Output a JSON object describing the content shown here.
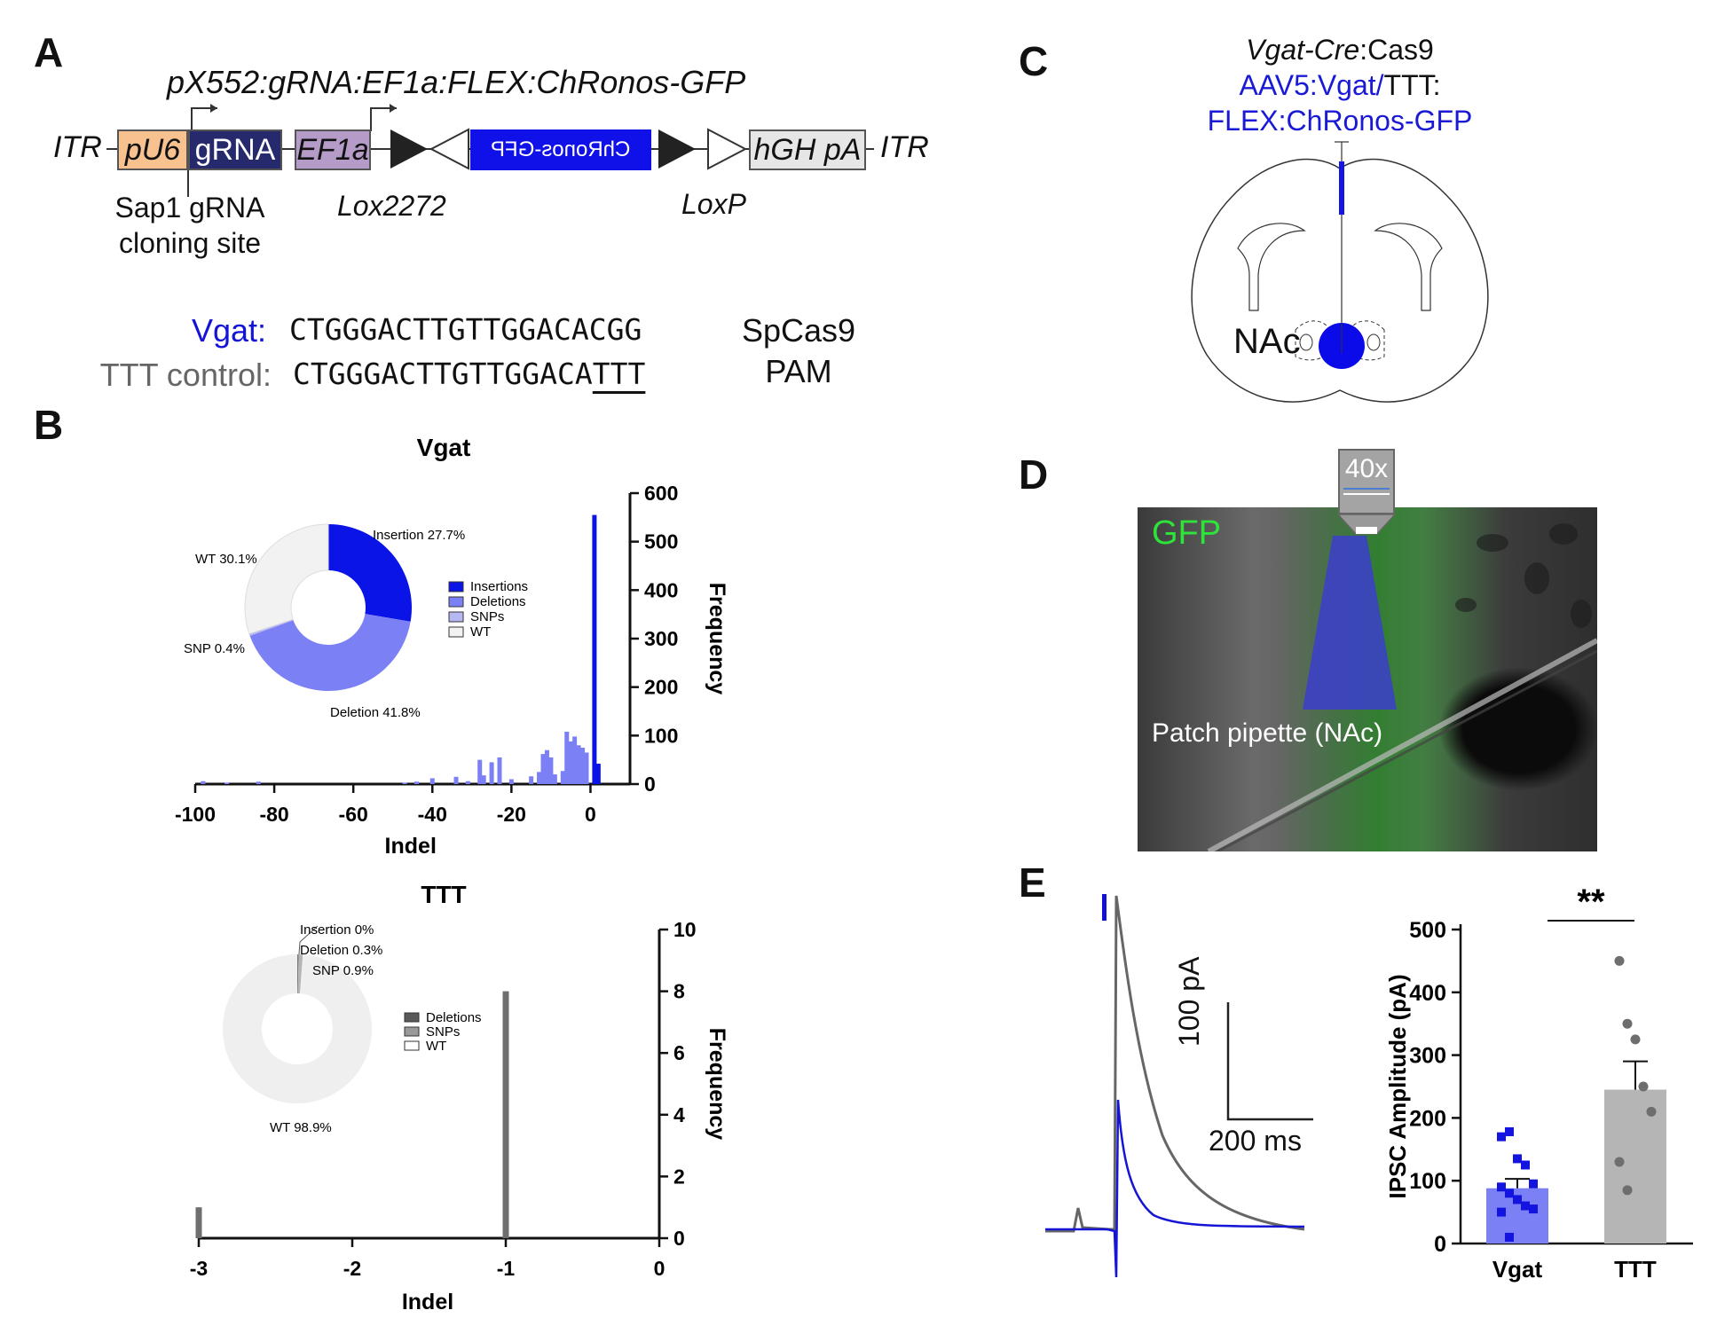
{
  "panels": {
    "A": "A",
    "B": "B",
    "C": "C",
    "D": "D",
    "E": "E"
  },
  "construct": {
    "title": "pX552:gRNA:EF1a:FLEX:ChRonos-GFP",
    "itr_left": "ITR",
    "itr_right": "ITR",
    "pu6": "pU6",
    "grna": "gRNA",
    "ef1a": "EF1a",
    "chronos": "ChRonos-GFP",
    "hgh": "hGH pA",
    "sap1_line1": "Sap1 gRNA",
    "sap1_line2": "cloning site",
    "lox2272": "Lox2272",
    "loxp": "LoxP",
    "colors": {
      "pu6": "#f7c28f",
      "grna": "#27296d",
      "ef1a": "#b49bc8",
      "chronos": "#1010e8",
      "hgh": "#e6e6e6"
    }
  },
  "sequences": {
    "vgat_label": "Vgat:",
    "vgat_seq": "CTGGGACTTGTTGGACACGG",
    "ttt_label": "TTT control:",
    "ttt_seq_prefix": "CTGGGACTTGTTGGACA",
    "ttt_seq_suffix": "TTT",
    "pam_line1": "SpCas9",
    "pam_line2": "PAM"
  },
  "chart_data": [
    {
      "type": "pie",
      "title": "Vgat",
      "labels": [
        "Insertion 27.7%",
        "Deletion 41.8%",
        "SNP 0.4%",
        "WT 30.1%"
      ],
      "values": [
        27.7,
        41.8,
        0.4,
        30.1
      ],
      "colors": [
        "#0a14e6",
        "#7b80f5",
        "#b6b8f3",
        "#f2f2f2"
      ],
      "legend": [
        "Insertions",
        "Deletions",
        "SNPs",
        "WT"
      ]
    },
    {
      "type": "bar",
      "xlabel": "Indel",
      "ylabel": "Frequency",
      "ylim": [
        0,
        600
      ],
      "xlim": [
        -100,
        10
      ],
      "xticks": [
        -100,
        -80,
        -60,
        -40,
        -20,
        0
      ],
      "yticks": [
        0,
        100,
        200,
        300,
        400,
        500,
        600
      ],
      "series": [
        {
          "x": [
            -98,
            -92,
            -84,
            -47,
            -44,
            -40,
            -34,
            -31,
            -28,
            -27,
            -25,
            -23,
            -20,
            -15,
            -13,
            -12,
            -11,
            -10,
            -9,
            -7,
            -6,
            -5,
            -4,
            -3,
            -2,
            -1
          ],
          "values": [
            6,
            3,
            5,
            3,
            5,
            12,
            15,
            6,
            50,
            18,
            45,
            55,
            10,
            16,
            25,
            62,
            70,
            55,
            20,
            27,
            108,
            88,
            98,
            80,
            75,
            65
          ]
        },
        {
          "x": [
            1,
            2
          ],
          "values": [
            555,
            42
          ]
        }
      ]
    },
    {
      "type": "pie",
      "title": "TTT",
      "labels": [
        "Insertion 0%",
        "Deletion 0.3%",
        "SNP 0.9%",
        "WT 98.9%"
      ],
      "values": [
        0,
        0.3,
        0.9,
        98.9
      ],
      "colors": [
        "#5a5a5a",
        "#7a7a7a",
        "#b5b5b5",
        "#efefef"
      ],
      "legend": [
        "Deletions",
        "SNPs",
        "WT"
      ]
    },
    {
      "type": "bar",
      "xlabel": "Indel",
      "ylabel": "Frequency",
      "ylim": [
        0,
        10
      ],
      "xlim": [
        -3,
        0
      ],
      "xticks": [
        -3,
        -2,
        -1,
        0
      ],
      "yticks": [
        0,
        2,
        4,
        6,
        8,
        10
      ],
      "series": [
        {
          "x": [
            -3,
            -1
          ],
          "values": [
            1,
            8
          ]
        }
      ]
    },
    {
      "type": "bar",
      "ylabel": "IPSC Amplitude (pA)",
      "ylim": [
        0,
        500
      ],
      "yticks": [
        0,
        100,
        200,
        300,
        400,
        500
      ],
      "categories": [
        "Vgat",
        "TTT"
      ],
      "values": [
        88,
        245
      ],
      "sem": [
        15,
        45
      ],
      "points": [
        [
          170,
          178,
          135,
          125,
          95,
          90,
          80,
          70,
          60,
          55,
          50,
          10
        ],
        [
          450,
          350,
          325,
          250,
          210,
          130,
          85
        ]
      ],
      "significance": "**"
    }
  ],
  "brain": {
    "line1_italic": "Vgat-Cre",
    "line1_rest": ":Cas9",
    "line2_blue": "AAV5:Vgat/",
    "line2_black": "TTT:",
    "line3": "FLEX:ChRonos-GFP",
    "nac": "NAc"
  },
  "micrograph": {
    "objective": "40x",
    "gfp": "GFP",
    "pipette": "Patch pipette (NAc)"
  },
  "trace": {
    "scale_y": "100 pA",
    "scale_x": "200 ms"
  }
}
